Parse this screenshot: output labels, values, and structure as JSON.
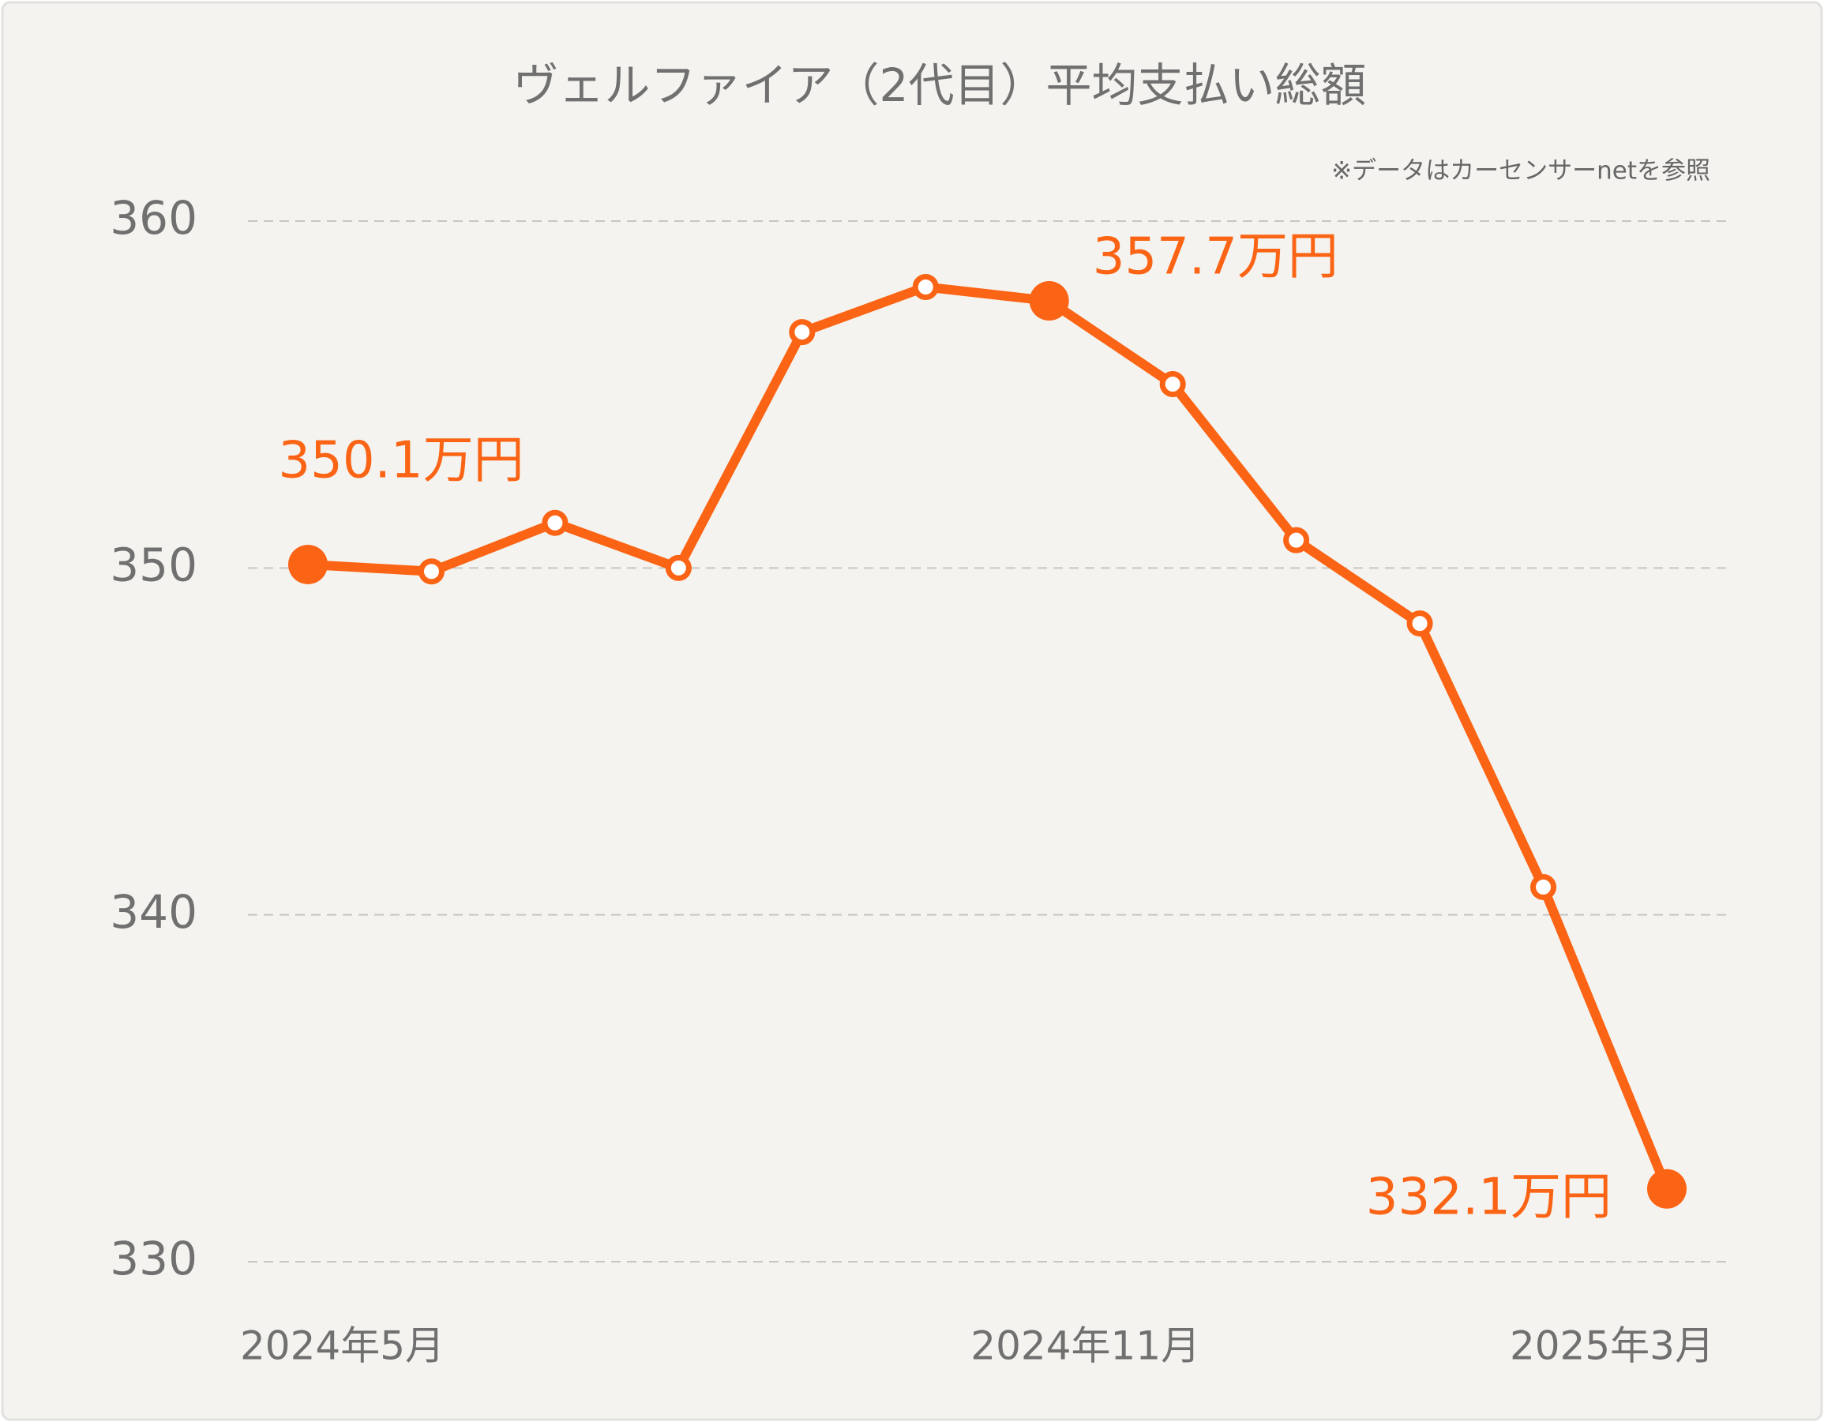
{
  "chart_data": {
    "type": "line",
    "title": "ヴェルファイア（2代目）平均支払い総額",
    "subtitle": "※データはカーセンサーnetを参照",
    "categories": [
      "2024年5月",
      null,
      null,
      null,
      null,
      null,
      "2024年11月",
      null,
      null,
      null,
      null,
      "2025年3月"
    ],
    "series": [
      {
        "name": "平均支払い総額",
        "color": "#fa6414",
        "values": [
          350.1,
          349.9,
          351.3,
          350.0,
          356.8,
          358.1,
          357.7,
          355.3,
          350.8,
          348.4,
          340.8,
          332.1
        ],
        "value_labels": [
          "350.1万円",
          null,
          null,
          null,
          null,
          null,
          "357.7万円",
          null,
          null,
          null,
          null,
          "332.1万円"
        ]
      }
    ],
    "ylim": [
      330,
      360
    ],
    "yticks": [
      330,
      340,
      350,
      360
    ],
    "grid": true
  }
}
